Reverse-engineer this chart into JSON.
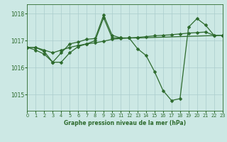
{
  "title": "Graphe pression niveau de la mer (hPa)",
  "background_color": "#cce8e4",
  "grid_color": "#aacccc",
  "line_color": "#2d6a2d",
  "xlim": [
    0,
    23
  ],
  "ylim": [
    1014.4,
    1018.35
  ],
  "yticks": [
    1015,
    1016,
    1017,
    1018
  ],
  "xticks": [
    0,
    1,
    2,
    3,
    4,
    5,
    6,
    7,
    8,
    9,
    10,
    11,
    12,
    13,
    14,
    15,
    16,
    17,
    18,
    19,
    20,
    21,
    22,
    23
  ],
  "series1_x": [
    0,
    1,
    2,
    3,
    4,
    5,
    6,
    7,
    8,
    9,
    10,
    11,
    12,
    13,
    14,
    15,
    16,
    17,
    18,
    19,
    20,
    21,
    22,
    23
  ],
  "series1_y": [
    1016.75,
    1016.75,
    1016.65,
    1016.55,
    1016.65,
    1016.75,
    1016.82,
    1016.88,
    1016.92,
    1016.98,
    1017.05,
    1017.08,
    1017.1,
    1017.12,
    1017.15,
    1017.18,
    1017.2,
    1017.22,
    1017.25,
    1017.28,
    1017.3,
    1017.32,
    1017.2,
    1017.2
  ],
  "series2_x": [
    0,
    1,
    2,
    3,
    4,
    5,
    6,
    7,
    8,
    9,
    10,
    11,
    12,
    13,
    14,
    15,
    16,
    17,
    18,
    19,
    20,
    21,
    22,
    23
  ],
  "series2_y": [
    1016.75,
    1016.75,
    1016.6,
    1016.2,
    1016.2,
    1016.55,
    1016.78,
    1016.88,
    1017.0,
    1017.85,
    1017.1,
    1017.1,
    1017.1,
    1016.7,
    1016.45,
    1015.85,
    1015.15,
    1014.78,
    1014.85,
    1017.5,
    1017.82,
    1017.58,
    1017.2,
    1017.2
  ],
  "series3_x": [
    0,
    1,
    2,
    3,
    4,
    5,
    6,
    7,
    8,
    9,
    10,
    11,
    12,
    13,
    23
  ],
  "series3_y": [
    1016.75,
    1016.65,
    1016.5,
    1016.2,
    1016.55,
    1016.88,
    1016.95,
    1017.05,
    1017.08,
    1017.95,
    1017.2,
    1017.1,
    1017.1,
    1017.1,
    1017.2
  ]
}
